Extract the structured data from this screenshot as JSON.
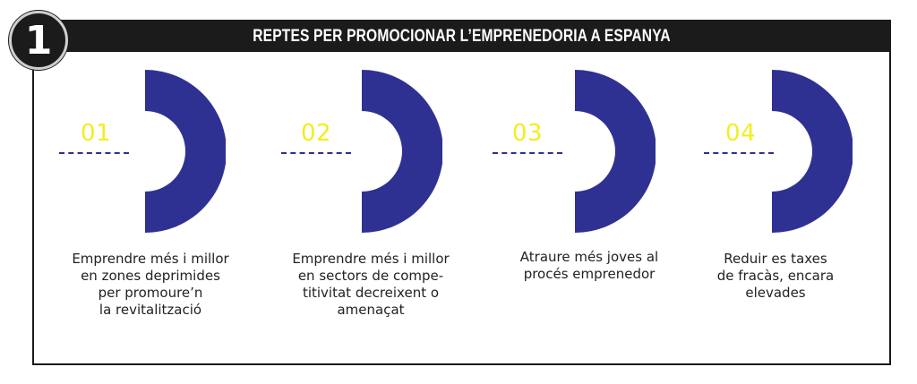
{
  "badge": {
    "number": "1"
  },
  "title": "REPTES PER PROMOCIONAR L’EMPRENEDORIA A ESPANYA",
  "steps": [
    {
      "number": "01",
      "text": "Emprendre més i millor\nen zones deprimides\nper promoure’n\nla revitalització"
    },
    {
      "number": "02",
      "text": "Emprendre més i millor\nen sectors de compe-\ntitivitat decreixent o\namenaçat"
    },
    {
      "number": "03",
      "text": "Atraure més joves al\nprocés emprenedor"
    },
    {
      "number": "04",
      "text": "Reduir es taxes\nde fracàs, encara\nelevades"
    }
  ],
  "colors": {
    "accent_navy": "#2e3192",
    "accent_yellow": "#f2ee1e",
    "header_black": "#1b1b1b"
  }
}
